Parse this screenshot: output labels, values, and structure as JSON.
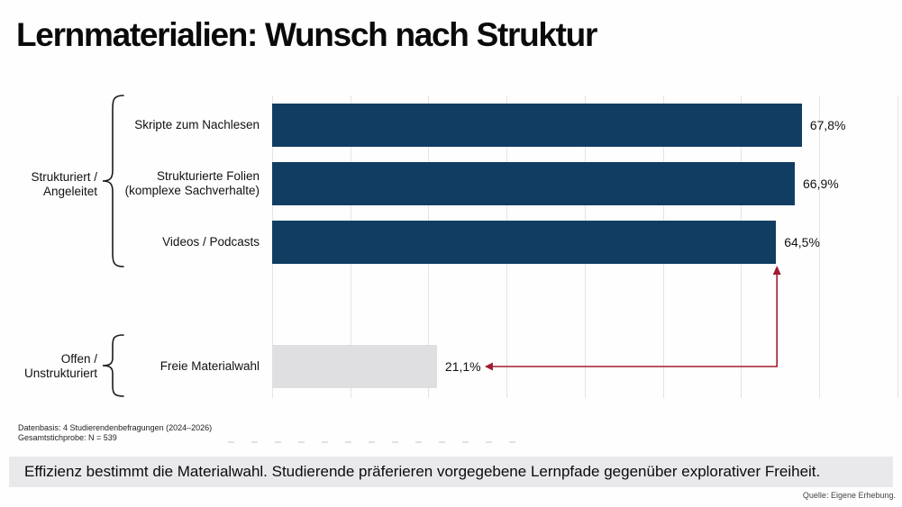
{
  "title": "Lernmaterialien: Wunsch nach Struktur",
  "chart_data": {
    "type": "bar",
    "orientation": "horizontal",
    "categories": [
      "Skripte zum Nachlesen",
      "Strukturierte Folien (komplexe Sachverhalte)",
      "Videos / Podcasts",
      "Freie Materialwahl"
    ],
    "category_lines": [
      [
        "Skripte zum Nachlesen"
      ],
      [
        "Strukturierte Folien",
        "(komplexe Sachverhalte)"
      ],
      [
        "Videos / Podcasts"
      ],
      [
        "Freie Materialwahl"
      ]
    ],
    "values": [
      67.8,
      66.9,
      64.5,
      21.1
    ],
    "value_labels": [
      "67,8%",
      "66,9%",
      "64,5%",
      "21,1%"
    ],
    "xlim": [
      0,
      80
    ],
    "gridline_step_pct": 10,
    "grid": "vertical-only",
    "legend": "none",
    "bar_colors": [
      "#113D63",
      "#113D63",
      "#113D63",
      "#DFDFE2"
    ],
    "groups": [
      {
        "label": "Strukturiert / Angeleitet",
        "lines": [
          "Strukturiert /",
          "Angeleitet"
        ],
        "rows": [
          0,
          1,
          2
        ]
      },
      {
        "label": "Offen / Unstrukturiert",
        "lines": [
          "Offen /",
          "Unstrukturiert"
        ],
        "rows": [
          3
        ]
      }
    ],
    "annotation": {
      "type": "elbow-arrow",
      "from_category": "Videos / Podcasts",
      "to_value_label": "21,1%",
      "color": "#A01C30"
    }
  },
  "footnotes": [
    "Datenbasis: 4 Studierendenbefragungen (2024–2026)",
    "Gesamtstichprobe: N = 539"
  ],
  "takeaway": "Effizienz bestimmt die Materialwahl. Studierende präferieren vorgegebene Lernpfade gegenüber explorativer Freiheit.",
  "source": "Quelle: Eigene Erhebung.",
  "colors": {
    "bar_primary": "#113D63",
    "bar_muted": "#DFDFE2",
    "arrow": "#A01C30",
    "gridline": "#E4E4E6",
    "takeaway_bg": "#E9E9EC",
    "text": "#111111"
  }
}
